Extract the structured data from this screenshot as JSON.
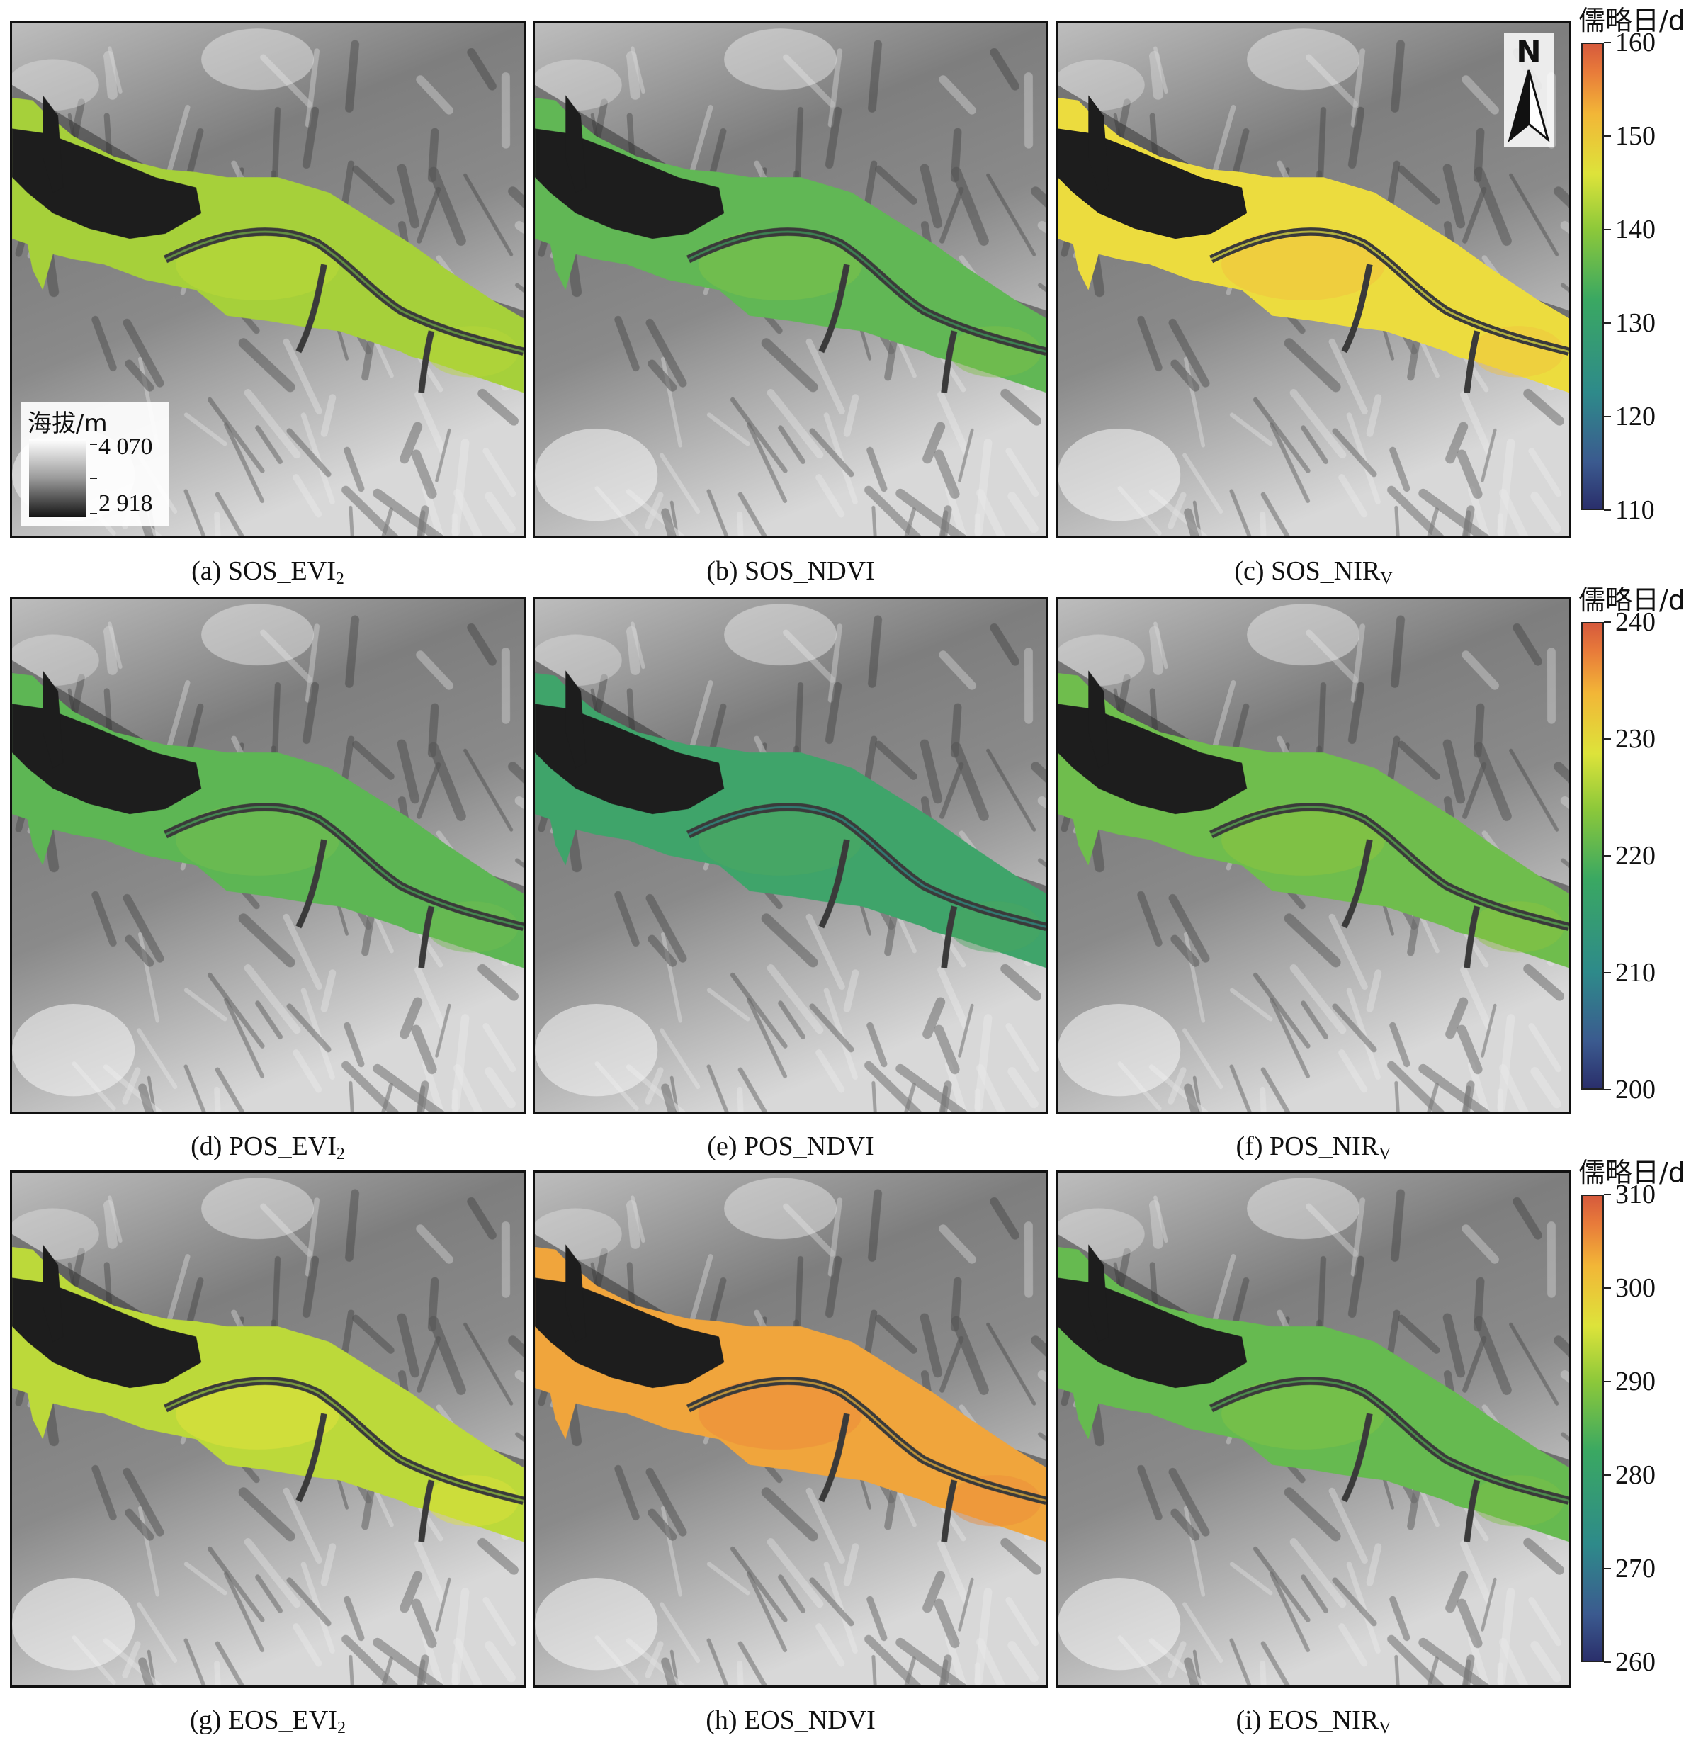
{
  "panels": [
    {
      "id": "a",
      "letter": "(a) ",
      "phase": "SOS",
      "index": "EVI",
      "sub": "2",
      "fill": "#a6d03a",
      "accent": "#b9d839",
      "river": "#74b447"
    },
    {
      "id": "b",
      "letter": "(b) ",
      "phase": "SOS",
      "index": "NDVI",
      "sub": "",
      "fill": "#61b755",
      "accent": "#7ec248",
      "river": "#3f9f5d"
    },
    {
      "id": "c",
      "letter": "(c) ",
      "phase": "SOS",
      "index": "NIR",
      "sub": "V",
      "fill": "#ecdc3e",
      "accent": "#f2c23e",
      "river": "#e7e645"
    },
    {
      "id": "d",
      "letter": "(d) ",
      "phase": "POS",
      "index": "EVI",
      "sub": "2",
      "fill": "#5db654",
      "accent": "#72bd4f",
      "river": "#4aaa5a"
    },
    {
      "id": "e",
      "letter": "(e) ",
      "phase": "POS",
      "index": "NDVI",
      "sub": "",
      "fill": "#3fa46a",
      "accent": "#4ca760",
      "river": "#2e958a"
    },
    {
      "id": "f",
      "letter": "(f) ",
      "phase": "POS",
      "index": "NIR",
      "sub": "V",
      "fill": "#6fbd4d",
      "accent": "#8cc43f",
      "river": "#5db452"
    },
    {
      "id": "g",
      "letter": "(g) ",
      "phase": "EOS",
      "index": "EVI",
      "sub": "2",
      "fill": "#bcd93a",
      "accent": "#e0e23c",
      "river": "#95c840"
    },
    {
      "id": "h",
      "letter": "(h) ",
      "phase": "EOS",
      "index": "NDVI",
      "sub": "",
      "fill": "#f0a53c",
      "accent": "#ec8c3a",
      "river": "#f2b83c"
    },
    {
      "id": "i",
      "letter": "(i) ",
      "phase": "EOS",
      "index": "NIR",
      "sub": "V",
      "fill": "#66ba50",
      "accent": "#7fc245",
      "river": "#55b156"
    }
  ],
  "colorbars": [
    {
      "title": "儒略日/d",
      "ticks": [
        "160",
        "150",
        "140",
        "130",
        "120",
        "110"
      ]
    },
    {
      "title": "儒略日/d",
      "ticks": [
        "240",
        "230",
        "220",
        "210",
        "200"
      ]
    },
    {
      "title": "儒略日/d",
      "ticks": [
        "310",
        "300",
        "290",
        "280",
        "270",
        "260"
      ]
    }
  ],
  "elevation_legend": {
    "title": "海拔/m",
    "max": "4 070",
    "min": "2 918"
  },
  "north_arrow": {
    "label": "N"
  },
  "colors": {
    "dem_light": "#f4f4f4",
    "dem_mid": "#9a9a9a",
    "dem_dark": "#1a1a1a",
    "frame": "#111111"
  }
}
